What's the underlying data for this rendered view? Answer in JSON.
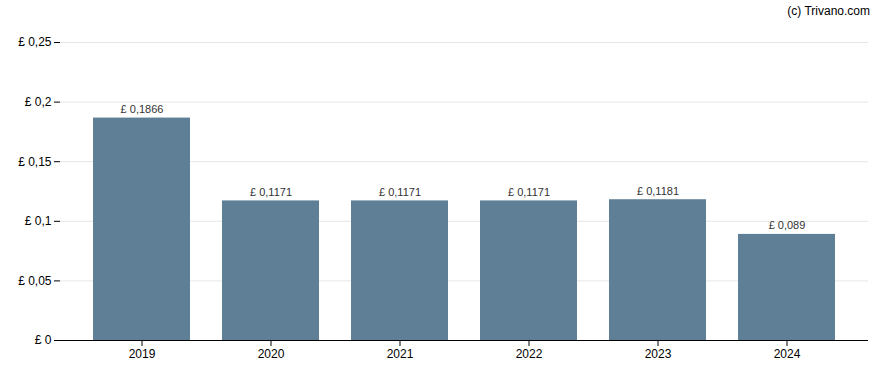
{
  "chart_data": {
    "type": "bar",
    "categories": [
      "2019",
      "2020",
      "2021",
      "2022",
      "2023",
      "2024"
    ],
    "values": [
      0.1866,
      0.1171,
      0.1171,
      0.1171,
      0.1181,
      0.089
    ],
    "value_labels": [
      "£ 0,1866",
      "£ 0,1171",
      "£ 0,1171",
      "£ 0,1171",
      "£ 0,1181",
      "£ 0,089"
    ],
    "data_labels": true,
    "color": "#5f7f96",
    "ylim": [
      0,
      0.25
    ],
    "yticks": [
      {
        "value": 0,
        "label": "£ 0"
      },
      {
        "value": 0.05,
        "label": "£ 0,05"
      },
      {
        "value": 0.1,
        "label": "£ 0,1"
      },
      {
        "value": 0.15,
        "label": "£ 0,15"
      },
      {
        "value": 0.2,
        "label": "£ 0,2"
      },
      {
        "value": 0.25,
        "label": "£ 0,25"
      }
    ],
    "grid": true,
    "annotations": [
      "(c) Trivano.com"
    ]
  }
}
